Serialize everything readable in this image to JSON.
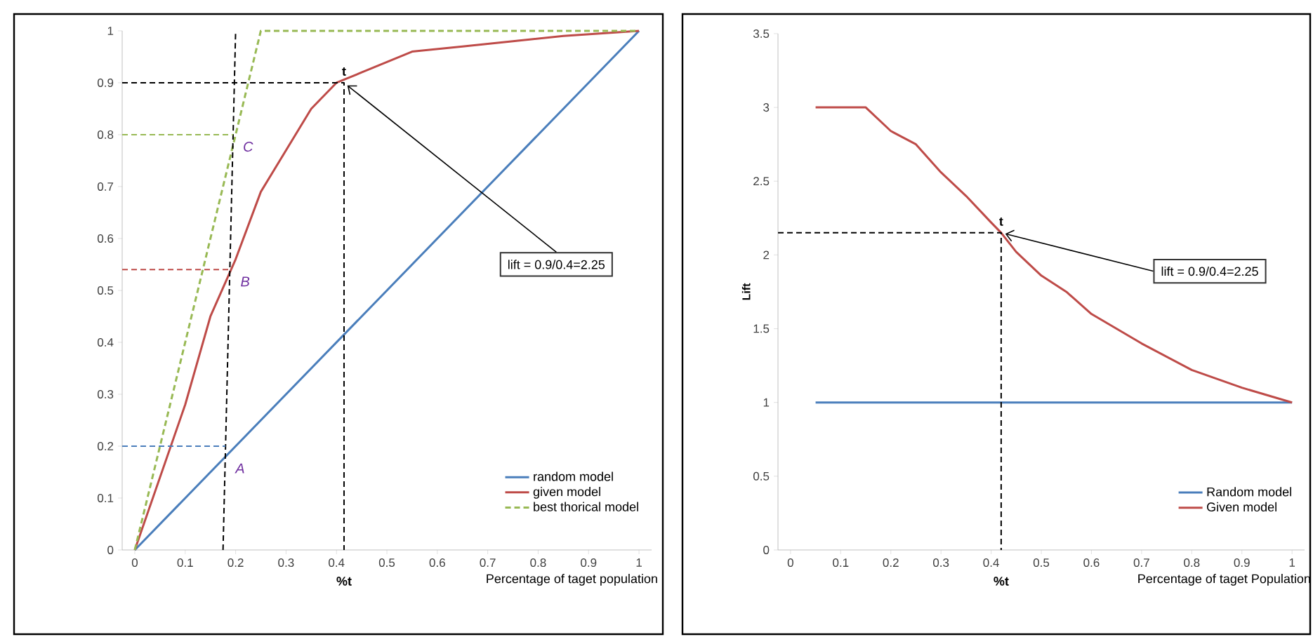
{
  "chart_data": [
    {
      "type": "line",
      "xlabel": "Percentage of taget population",
      "xlim": [
        -0.025,
        1.025
      ],
      "ylim": [
        0,
        1
      ],
      "xticks": [
        0,
        0.1,
        0.2,
        0.3,
        0.4,
        0.5,
        0.6,
        0.7,
        0.8,
        0.9,
        1
      ],
      "yticks": [
        0,
        0.1,
        0.2,
        0.3,
        0.4,
        0.5,
        0.6,
        0.7,
        0.8,
        0.9,
        1
      ],
      "legend": "bottom right",
      "grid": false,
      "series": [
        {
          "name": "random model",
          "color": "#4a7ebb",
          "line_style": "solid",
          "x": [
            0,
            1
          ],
          "values": [
            0,
            1
          ]
        },
        {
          "name": "given model",
          "color": "#be4b48",
          "line_style": "solid",
          "x": [
            0,
            0.1,
            0.15,
            0.2,
            0.25,
            0.3,
            0.35,
            0.4,
            0.45,
            0.55,
            0.65,
            0.75,
            0.85,
            1
          ],
          "values": [
            0,
            0.28,
            0.45,
            0.56,
            0.69,
            0.77,
            0.85,
            0.9,
            0.92,
            0.96,
            0.97,
            0.98,
            0.99,
            1
          ]
        },
        {
          "name": "best thorical model",
          "color": "#98b954",
          "line_style": "dashed",
          "x": [
            0,
            0.25,
            1
          ],
          "values": [
            0,
            1,
            1
          ]
        },
        {
          "color": "#000000",
          "line_style": "dashed",
          "x": [
            -0.025,
            0.415,
            0.415
          ],
          "values": [
            0.9,
            0.9,
            0
          ]
        },
        {
          "color": "#000000",
          "line_style": "dashed",
          "x": [
            0.175,
            0.2
          ],
          "values": [
            0,
            1
          ]
        },
        {
          "color": "#4a7ebb",
          "line_style": "dashed",
          "x": [
            -0.025,
            0.18
          ],
          "values": [
            0.2,
            0.2
          ]
        },
        {
          "color": "#be4b48",
          "line_style": "dashed",
          "x": [
            -0.025,
            0.19
          ],
          "values": [
            0.54,
            0.54
          ]
        },
        {
          "color": "#98b954",
          "line_style": "dashed",
          "x": [
            -0.025,
            0.195
          ],
          "values": [
            0.8,
            0.8
          ]
        }
      ],
      "annotations": [
        {
          "text": "t",
          "x": 0.415,
          "y": 0.9
        },
        {
          "text": "%t",
          "x": 0.415,
          "y": 0
        },
        {
          "text": "A",
          "x": 0.18,
          "y": 0.18
        },
        {
          "text": "B",
          "x": 0.19,
          "y": 0.54
        },
        {
          "text": "C",
          "x": 0.195,
          "y": 0.8
        },
        {
          "text": "lift = 0.9/0.4=2.25",
          "x": 0.415,
          "y": 0.9
        }
      ]
    },
    {
      "type": "line",
      "xlabel": "Percentage of taget Population",
      "ylabel": "Lift",
      "xlim": [
        -0.025,
        1.025
      ],
      "ylim": [
        0,
        3.5
      ],
      "xticks": [
        0,
        0.1,
        0.2,
        0.3,
        0.4,
        0.5,
        0.6,
        0.7,
        0.8,
        0.9,
        1
      ],
      "yticks": [
        0,
        0.5,
        1,
        1.5,
        2,
        2.5,
        3,
        3.5
      ],
      "legend": "bottom right",
      "grid": false,
      "series": [
        {
          "name": "Random model",
          "color": "#4a7ebb",
          "line_style": "solid",
          "x": [
            0.05,
            1
          ],
          "values": [
            1,
            1
          ]
        },
        {
          "name": "Given model",
          "color": "#be4b48",
          "line_style": "solid",
          "x": [
            0.05,
            0.15,
            0.2,
            0.25,
            0.3,
            0.35,
            0.4,
            0.42,
            0.45,
            0.5,
            0.55,
            0.6,
            0.7,
            0.8,
            0.9,
            1
          ],
          "values": [
            3,
            3,
            2.84,
            2.75,
            2.56,
            2.4,
            2.22,
            2.15,
            2.02,
            1.86,
            1.75,
            1.6,
            1.4,
            1.22,
            1.1,
            1
          ]
        },
        {
          "color": "#000000",
          "line_style": "dashed",
          "x": [
            -0.025,
            0.42,
            0.42
          ],
          "values": [
            2.15,
            2.15,
            0
          ]
        }
      ],
      "annotations": [
        {
          "text": "t",
          "x": 0.42,
          "y": 2.15
        },
        {
          "text": "%t",
          "x": 0.42,
          "y": 0
        },
        {
          "text": "lift = 0.9/0.4=2.25",
          "x": 0.42,
          "y": 2.15
        }
      ]
    }
  ]
}
